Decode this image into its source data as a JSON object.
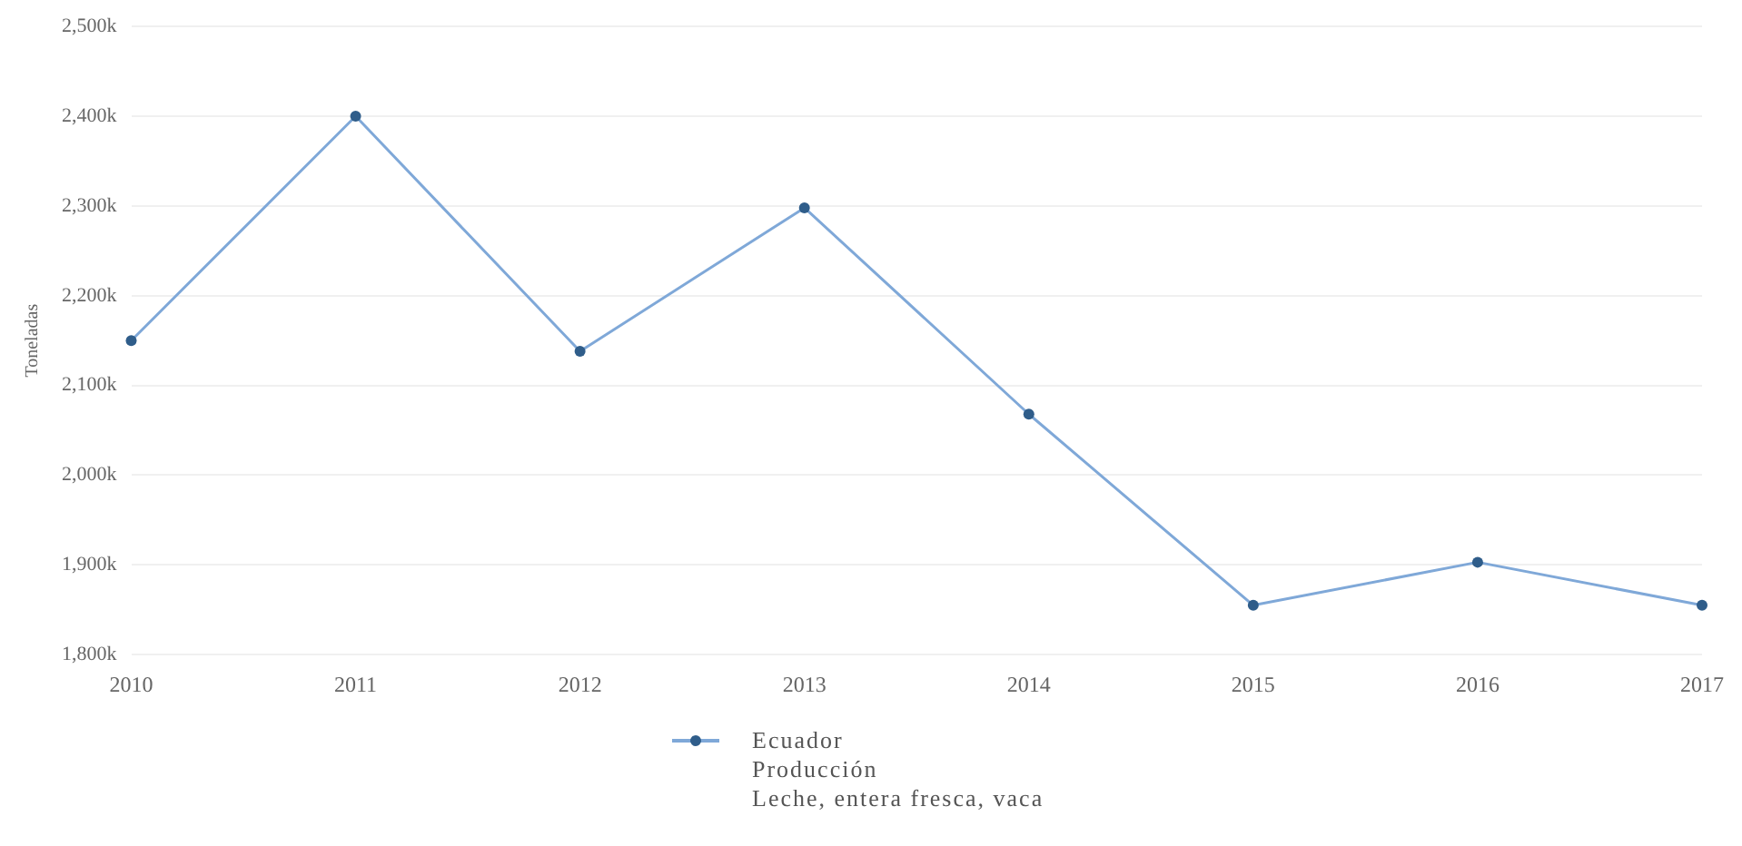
{
  "chart_data": {
    "type": "line",
    "ylabel": "Toneladas",
    "categories": [
      "2010",
      "2011",
      "2012",
      "2013",
      "2014",
      "2015",
      "2016",
      "2017"
    ],
    "series": [
      {
        "name": "Ecuador\nProducción\nLeche, entera fresca, vaca",
        "color": "#7fa8d8",
        "values": [
          2150000,
          2400000,
          2138000,
          2298000,
          2068000,
          1855000,
          1903000,
          1855000
        ]
      }
    ],
    "ylim": [
      1800000,
      2500000
    ],
    "yticks": [
      {
        "value": 1800000,
        "label": "1,800k"
      },
      {
        "value": 1900000,
        "label": "1,900k"
      },
      {
        "value": 2000000,
        "label": "2,000k"
      },
      {
        "value": 2100000,
        "label": "2,100k"
      },
      {
        "value": 2200000,
        "label": "2,200k"
      },
      {
        "value": 2300000,
        "label": "2,300k"
      },
      {
        "value": 2400000,
        "label": "2,400k"
      },
      {
        "value": 2500000,
        "label": "2,500k"
      }
    ],
    "grid": "y",
    "legend": "bottom",
    "marker": "circle",
    "line_style": "solid"
  }
}
